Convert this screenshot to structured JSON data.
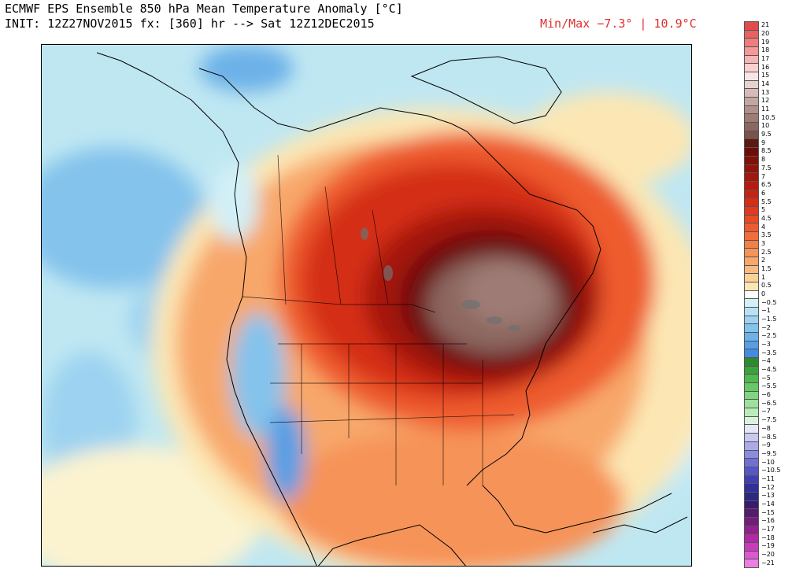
{
  "header": {
    "title": "ECMWF EPS Ensemble 850 hPa Mean Temperature Anomaly [°C]",
    "init_line": "INIT: 12Z27NOV2015 fx: [360] hr --> Sat 12Z12DEC2015",
    "minmax": "Min/Max −7.3° | 10.9°C"
  },
  "colors": {
    "ocean_light_blue": "#bfe7f2",
    "pale_yellow": "#fbefb0",
    "orange": "#f7a060",
    "red": "#e3381e",
    "dark_red": "#8a1208",
    "brown_max": "#8c6f6a",
    "blue_cold": "#5aa6e6",
    "coastline": "#000000",
    "lakes_outline": "#707070",
    "minmax_text": "#e03030"
  },
  "legend": {
    "items": [
      {
        "label": "21",
        "color": "#e04b4b"
      },
      {
        "label": "20",
        "color": "#e86262"
      },
      {
        "label": "19",
        "color": "#ef7d7d"
      },
      {
        "label": "18",
        "color": "#f59898"
      },
      {
        "label": "17",
        "color": "#f9b4b4"
      },
      {
        "label": "16",
        "color": "#fcd0d0"
      },
      {
        "label": "15",
        "color": "#f5e7e5"
      },
      {
        "label": "14",
        "color": "#e6d2cf"
      },
      {
        "label": "13",
        "color": "#d5bcb8"
      },
      {
        "label": "12",
        "color": "#c3a6a1"
      },
      {
        "label": "11",
        "color": "#b0908a"
      },
      {
        "label": "10.5",
        "color": "#9e7b75"
      },
      {
        "label": "10",
        "color": "#8c6760"
      },
      {
        "label": "9.5",
        "color": "#7a534c"
      },
      {
        "label": "9",
        "color": "#5a1a12"
      },
      {
        "label": "8.5",
        "color": "#6e0d07"
      },
      {
        "label": "8",
        "color": "#81100a"
      },
      {
        "label": "7.5",
        "color": "#93130c"
      },
      {
        "label": "7",
        "color": "#a5160e"
      },
      {
        "label": "6.5",
        "color": "#b71b10"
      },
      {
        "label": "6",
        "color": "#c72314"
      },
      {
        "label": "5.5",
        "color": "#d42e18"
      },
      {
        "label": "5",
        "color": "#e03a1e"
      },
      {
        "label": "4.5",
        "color": "#e84a26"
      },
      {
        "label": "4",
        "color": "#ee5b2f"
      },
      {
        "label": "3.5",
        "color": "#f26d3a"
      },
      {
        "label": "3",
        "color": "#f48048"
      },
      {
        "label": "2.5",
        "color": "#f69358"
      },
      {
        "label": "2",
        "color": "#f8a76a"
      },
      {
        "label": "1.5",
        "color": "#f9bb80"
      },
      {
        "label": "1",
        "color": "#fbd198"
      },
      {
        "label": "0.5",
        "color": "#fce7b4"
      },
      {
        "label": "0",
        "color": "#ffffff"
      },
      {
        "label": "−0.5",
        "color": "#d2f0f8"
      },
      {
        "label": "−1",
        "color": "#b7e2f4"
      },
      {
        "label": "−1.5",
        "color": "#9dd3f0"
      },
      {
        "label": "−2",
        "color": "#84c3ec"
      },
      {
        "label": "−2.5",
        "color": "#6cb1e8"
      },
      {
        "label": "−3",
        "color": "#569fe4"
      },
      {
        "label": "−3.5",
        "color": "#428ddf"
      },
      {
        "label": "−4",
        "color": "#2f8a2f"
      },
      {
        "label": "−4.5",
        "color": "#3da23d"
      },
      {
        "label": "−5",
        "color": "#4fb84f"
      },
      {
        "label": "−5.5",
        "color": "#66c966"
      },
      {
        "label": "−6",
        "color": "#80d680"
      },
      {
        "label": "−6.5",
        "color": "#9de19d"
      },
      {
        "label": "−7",
        "color": "#bbebbb"
      },
      {
        "label": "−7.5",
        "color": "#d8f4d8"
      },
      {
        "label": "−8",
        "color": "#e6e6f6"
      },
      {
        "label": "−8.5",
        "color": "#c8c8f0"
      },
      {
        "label": "−9",
        "color": "#aaaae8"
      },
      {
        "label": "−9.5",
        "color": "#8c8cdf"
      },
      {
        "label": "−10",
        "color": "#7070d4"
      },
      {
        "label": "−10.5",
        "color": "#5656c6"
      },
      {
        "label": "−11",
        "color": "#4040b4"
      },
      {
        "label": "−12",
        "color": "#30309a"
      },
      {
        "label": "−13",
        "color": "#2a2a80"
      },
      {
        "label": "−14",
        "color": "#3a1a6a"
      },
      {
        "label": "−15",
        "color": "#561a6e"
      },
      {
        "label": "−16",
        "color": "#741c7c"
      },
      {
        "label": "−17",
        "color": "#92208e"
      },
      {
        "label": "−18",
        "color": "#b02aa2"
      },
      {
        "label": "−19",
        "color": "#c83cba"
      },
      {
        "label": "−20",
        "color": "#dc58d0"
      },
      {
        "label": "−21",
        "color": "#ec7ee2"
      }
    ]
  }
}
